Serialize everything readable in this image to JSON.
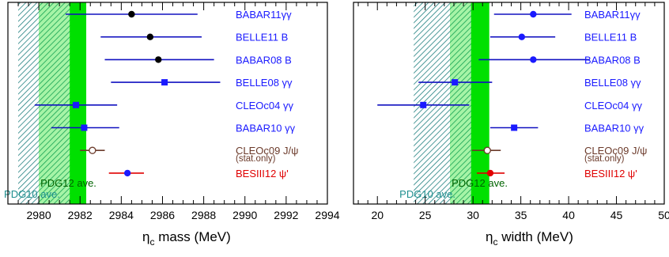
{
  "chart_data": [
    {
      "type": "scatter",
      "xlabel": "η",
      "xlabel_sub": "c",
      "xlabel_rest": " mass (MeV)",
      "xlim": [
        2978.5,
        2994
      ],
      "ticks": [
        2980,
        2982,
        2984,
        2986,
        2988,
        2990,
        2992,
        2994
      ],
      "bands": [
        {
          "name": "PDG10 ave.",
          "from": 2979.0,
          "to": 2981.8,
          "style": "hatch",
          "color": "#1f7f7f",
          "label_color": "#1f8f8f"
        },
        {
          "name": "PDG12 ave.",
          "from": 2980.0,
          "to": 2982.3,
          "style": "green",
          "inner_from": 2980.0,
          "inner_to": 2981.5,
          "color": "#00e000",
          "label_color": "#006400"
        }
      ],
      "points": [
        {
          "label": "BABAR11γγ",
          "value": 2984.5,
          "low": 2981.3,
          "high": 2987.7,
          "marker": "circle",
          "color": "#1010c0",
          "marker_color": "#000000",
          "label_color": "#1a1aff"
        },
        {
          "label": "BELLE11 B",
          "value": 2985.4,
          "low": 2983.0,
          "high": 2987.9,
          "marker": "circle",
          "color": "#1010c0",
          "marker_color": "#000000",
          "label_color": "#1a1aff"
        },
        {
          "label": "BABAR08 B",
          "value": 2985.8,
          "low": 2983.2,
          "high": 2988.5,
          "marker": "circle",
          "color": "#1010c0",
          "marker_color": "#000000",
          "label_color": "#1a1aff"
        },
        {
          "label": "BELLE08 γγ",
          "value": 2986.1,
          "low": 2983.5,
          "high": 2988.8,
          "marker": "square",
          "color": "#1010c0",
          "marker_color": "#1a1aff",
          "label_color": "#1a1aff"
        },
        {
          "label": "CLEOc04 γγ",
          "value": 2981.8,
          "low": 2979.8,
          "high": 2983.8,
          "marker": "square",
          "color": "#1010c0",
          "marker_color": "#1a1aff",
          "label_color": "#1a1aff"
        },
        {
          "label": "BABAR10 γγ",
          "value": 2982.2,
          "low": 2980.6,
          "high": 2983.9,
          "marker": "square",
          "color": "#1010c0",
          "marker_color": "#1a1aff",
          "label_color": "#1a1aff"
        },
        {
          "label": "CLEOc09 J/ψ",
          "sublabel": "(stat.only)",
          "value": 2982.6,
          "low": 2982.0,
          "high": 2983.2,
          "marker": "open-circle",
          "color": "#6b3a2a",
          "marker_color": "#6b3a2a",
          "label_color": "#6b3a2a"
        },
        {
          "label": "BESIII12 ψ'",
          "value": 2984.3,
          "low": 2983.4,
          "high": 2985.1,
          "marker": "circle",
          "color": "#e00000",
          "marker_color": "#1a1aff",
          "label_color": "#e00000"
        }
      ]
    },
    {
      "type": "scatter",
      "xlabel": "η",
      "xlabel_sub": "c",
      "xlabel_rest": " width (MeV)",
      "xlim": [
        17.5,
        50
      ],
      "ticks": [
        20,
        25,
        30,
        35,
        40,
        45,
        50
      ],
      "bands": [
        {
          "name": "PDG10 ave.",
          "from": 23.8,
          "to": 31.4,
          "style": "hatch",
          "color": "#1f7f7f",
          "label_color": "#1f8f8f"
        },
        {
          "name": "PDG12 ave.",
          "from": 27.6,
          "to": 31.7,
          "style": "green",
          "inner_from": 27.6,
          "inner_to": 29.8,
          "color": "#00e000",
          "label_color": "#006400"
        }
      ],
      "points": [
        {
          "label": "BABAR11γγ",
          "value": 36.3,
          "low": 32.2,
          "high": 40.3,
          "marker": "circle",
          "color": "#1010c0",
          "marker_color": "#1a1aff",
          "label_color": "#1a1aff"
        },
        {
          "label": "BELLE11 B",
          "value": 35.1,
          "low": 31.8,
          "high": 38.6,
          "marker": "circle",
          "color": "#1010c0",
          "marker_color": "#1a1aff",
          "label_color": "#1a1aff"
        },
        {
          "label": "BABAR08 B",
          "value": 36.3,
          "low": 30.6,
          "high": 42.2,
          "marker": "circle",
          "color": "#1010c0",
          "marker_color": "#1a1aff",
          "label_color": "#1a1aff"
        },
        {
          "label": "BELLE08 γγ",
          "value": 28.1,
          "low": 24.3,
          "high": 32.0,
          "marker": "square",
          "color": "#1010c0",
          "marker_color": "#1a1aff",
          "label_color": "#1a1aff"
        },
        {
          "label": "CLEOc04 γγ",
          "value": 24.8,
          "low": 20.0,
          "high": 29.6,
          "marker": "square",
          "color": "#1010c0",
          "marker_color": "#1a1aff",
          "label_color": "#1a1aff"
        },
        {
          "label": "BABAR10 γγ",
          "value": 34.3,
          "low": 31.8,
          "high": 36.8,
          "marker": "square",
          "color": "#1010c0",
          "marker_color": "#1a1aff",
          "label_color": "#1a1aff"
        },
        {
          "label": "CLEOc09 J/ψ",
          "sublabel": "(stat.only)",
          "value": 31.5,
          "low": 29.9,
          "high": 32.9,
          "marker": "open-circle",
          "color": "#6b3a2a",
          "marker_color": "#6b3a2a",
          "label_color": "#6b3a2a"
        },
        {
          "label": "BESIII12 ψ'",
          "value": 31.8,
          "low": 30.4,
          "high": 33.3,
          "marker": "circle",
          "color": "#e00000",
          "marker_color": "#e00000",
          "label_color": "#e00000"
        }
      ]
    }
  ]
}
